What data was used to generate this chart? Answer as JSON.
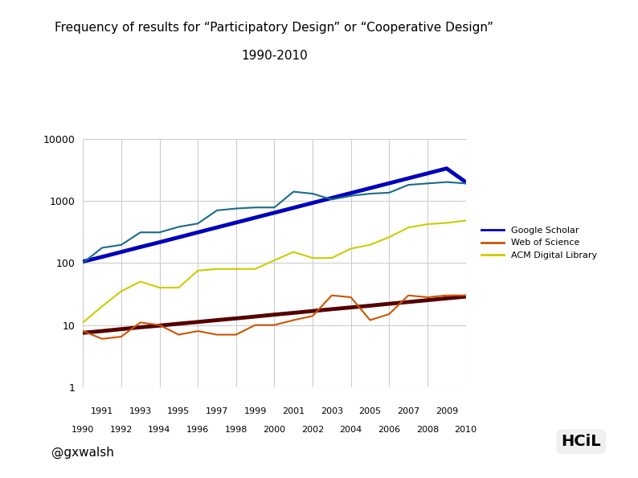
{
  "title_line1": "Frequency of results for “Participatory Design” or “Cooperative Design”",
  "title_line2": "1990-2010",
  "years": [
    1990,
    1991,
    1992,
    1993,
    1994,
    1995,
    1996,
    1997,
    1998,
    1999,
    2000,
    2001,
    2002,
    2003,
    2004,
    2005,
    2006,
    2007,
    2008,
    2009,
    2010
  ],
  "google_scholar": [
    100,
    175,
    195,
    310,
    310,
    380,
    430,
    700,
    750,
    780,
    780,
    1400,
    1300,
    1050,
    1200,
    1300,
    1350,
    1800,
    1900,
    2000,
    1900
  ],
  "google_scholar_trend": [
    105,
    125,
    150,
    180,
    215,
    258,
    310,
    372,
    446,
    535,
    642,
    770,
    924,
    1109,
    1330,
    1596,
    1915,
    2298,
    2758,
    3310,
    2000
  ],
  "web_of_science": [
    8,
    6,
    6.5,
    11,
    10,
    7,
    8,
    7,
    7,
    10,
    10,
    12,
    14,
    30,
    28,
    12,
    15,
    30,
    28,
    30,
    30
  ],
  "web_of_science_trend": [
    7.5,
    8.0,
    8.6,
    9.2,
    9.8,
    10.5,
    11.2,
    12.0,
    12.8,
    13.7,
    14.7,
    15.7,
    16.8,
    18.0,
    19.2,
    20.5,
    22.0,
    23.5,
    25.1,
    26.9,
    28.7
  ],
  "acm_digital": [
    11,
    20,
    35,
    50,
    40,
    40,
    75,
    80,
    80,
    80,
    110,
    150,
    120,
    120,
    170,
    195,
    260,
    370,
    420,
    440,
    480
  ],
  "google_scholar_color": "#1a6b8a",
  "google_scholar_trend_color": "#0000bb",
  "web_of_science_color": "#cc5500",
  "web_of_science_trend_color": "#550000",
  "acm_digital_color": "#cccc00",
  "legend_label_gs": "Google Scholar",
  "legend_label_wos": "Web of Science",
  "legend_label_acm": "ACM Digital Library",
  "background_color": "#ffffff",
  "watermark": "@gxwalsh",
  "ylim_min": 1,
  "ylim_max": 10000,
  "xlim_min": 1990,
  "xlim_max": 2010
}
